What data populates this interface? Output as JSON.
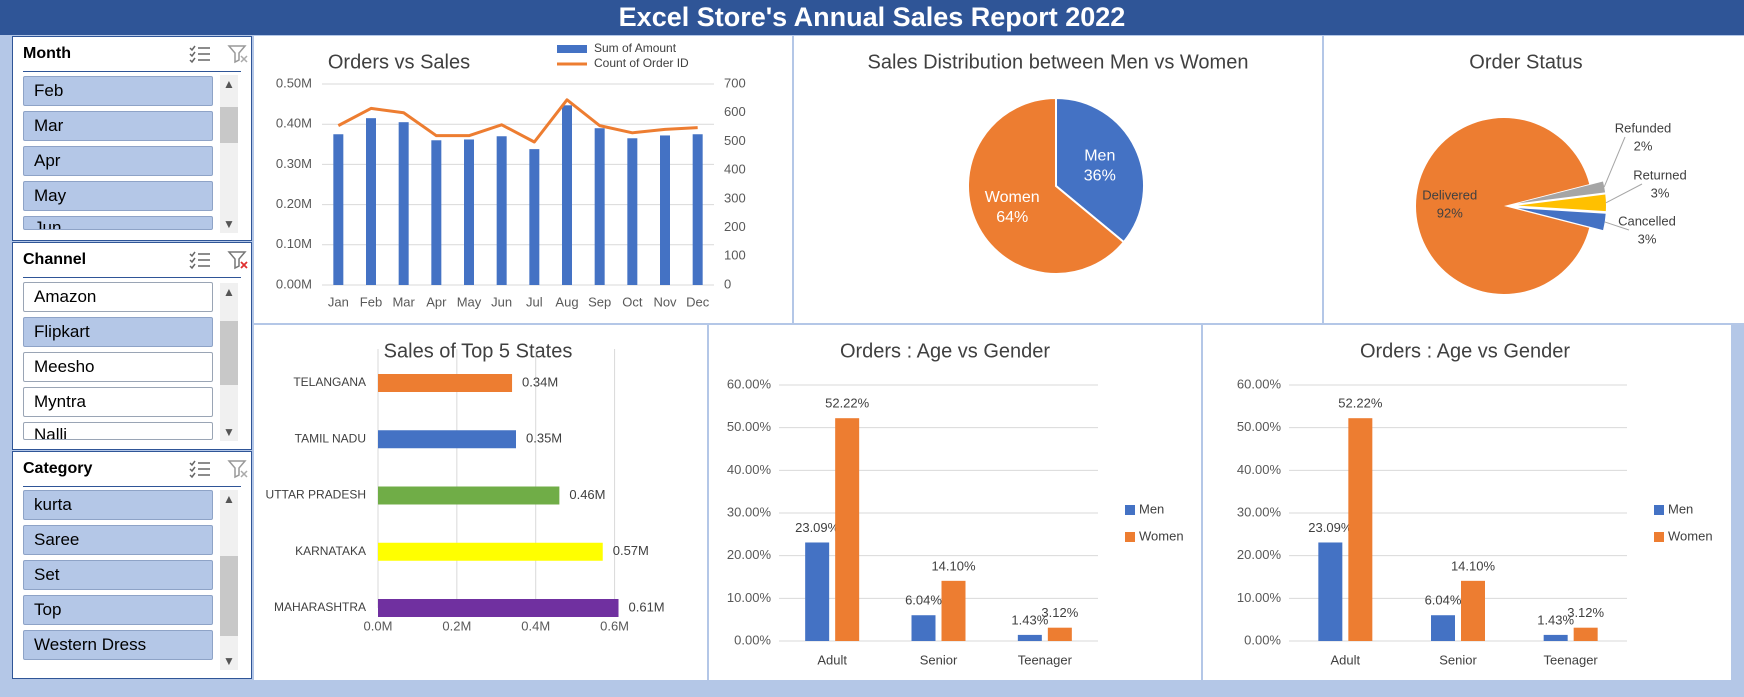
{
  "title": "Excel Store's Annual Sales Report 2022",
  "colors": {
    "banner": "#2f5597",
    "blue": "#4472c4",
    "orange": "#ed7d31",
    "gray": "#a5a5a5",
    "yellow": "#ffc000",
    "green": "#70ad47",
    "bright_yellow": "#ffff00",
    "purple": "#7030a0"
  },
  "slicers": [
    {
      "title": "Month",
      "items": [
        {
          "label": "Feb",
          "selected": true
        },
        {
          "label": "Mar",
          "selected": true
        },
        {
          "label": "Apr",
          "selected": true
        },
        {
          "label": "May",
          "selected": true
        },
        {
          "label": "Jun",
          "selected": true
        }
      ]
    },
    {
      "title": "Channel",
      "items": [
        {
          "label": "Amazon",
          "selected": false
        },
        {
          "label": "Flipkart",
          "selected": true
        },
        {
          "label": "Meesho",
          "selected": false
        },
        {
          "label": "Myntra",
          "selected": false
        },
        {
          "label": "Nalli",
          "selected": false
        }
      ]
    },
    {
      "title": "Category",
      "items": [
        {
          "label": "kurta",
          "selected": true
        },
        {
          "label": "Saree",
          "selected": true
        },
        {
          "label": "Set",
          "selected": true
        },
        {
          "label": "Top",
          "selected": true
        },
        {
          "label": "Western Dress",
          "selected": true
        }
      ]
    }
  ],
  "chart_data": [
    {
      "id": "orders_vs_sales",
      "type": "bar",
      "title": "Orders vs Sales",
      "categories": [
        "Jan",
        "Feb",
        "Mar",
        "Apr",
        "May",
        "Jun",
        "Jul",
        "Aug",
        "Sep",
        "Oct",
        "Nov",
        "Dec"
      ],
      "series": [
        {
          "name": "Sum of Amount",
          "type": "bar",
          "axis": "primary",
          "values": [
            0.375,
            0.415,
            0.405,
            0.36,
            0.362,
            0.37,
            0.338,
            0.447,
            0.39,
            0.365,
            0.372,
            0.375
          ]
        },
        {
          "name": "Count of Order ID",
          "type": "line",
          "axis": "secondary",
          "values": [
            555,
            615,
            600,
            520,
            520,
            558,
            498,
            645,
            555,
            530,
            542,
            548
          ]
        }
      ],
      "ylim": [
        0,
        0.5
      ],
      "y_ticks": [
        "0.00M",
        "0.10M",
        "0.20M",
        "0.30M",
        "0.40M",
        "0.50M"
      ],
      "y2lim": [
        0,
        700
      ],
      "y2_ticks": [
        "0",
        "100",
        "200",
        "300",
        "400",
        "500",
        "600",
        "700"
      ],
      "legend": "top-right"
    },
    {
      "id": "sales_men_women",
      "type": "pie",
      "title": "Sales Distribution between Men vs Women",
      "slices": [
        {
          "label": "Men",
          "value": 36,
          "text": "36%"
        },
        {
          "label": "Women",
          "value": 64,
          "text": "64%"
        }
      ]
    },
    {
      "id": "order_status",
      "type": "pie",
      "title": "Order Status",
      "slices": [
        {
          "label": "Delivered",
          "value": 92,
          "text": "92%"
        },
        {
          "label": "Refunded",
          "value": 2,
          "text": "2%"
        },
        {
          "label": "Returned",
          "value": 3,
          "text": "3%"
        },
        {
          "label": "Cancelled",
          "value": 3,
          "text": "3%"
        }
      ]
    },
    {
      "id": "top5_states",
      "type": "bar",
      "orientation": "horizontal",
      "title": "Sales of Top 5 States",
      "categories": [
        "TELANGANA",
        "TAMIL NADU",
        "UTTAR PRADESH",
        "KARNATAKA",
        "MAHARASHTRA"
      ],
      "values": [
        0.34,
        0.35,
        0.46,
        0.57,
        0.61
      ],
      "labels": [
        "0.34M",
        "0.35M",
        "0.46M",
        "0.57M",
        "0.61M"
      ],
      "xlim": [
        0,
        0.7
      ],
      "x_ticks": [
        "0.0M",
        "0.2M",
        "0.4M",
        "0.6M"
      ]
    },
    {
      "id": "age_gender_1",
      "type": "bar",
      "title": "Orders : Age vs Gender",
      "categories": [
        "Adult",
        "Senior",
        "Teenager"
      ],
      "series": [
        {
          "name": "Men",
          "values": [
            23.09,
            6.04,
            1.43
          ],
          "labels": [
            "23.09%",
            "6.04%",
            "1.43%"
          ]
        },
        {
          "name": "Women",
          "values": [
            52.22,
            14.1,
            3.12
          ],
          "labels": [
            "52.22%",
            "14.10%",
            "3.12%"
          ]
        }
      ],
      "ylim": [
        0,
        60
      ],
      "y_ticks": [
        "0.00%",
        "10.00%",
        "20.00%",
        "30.00%",
        "40.00%",
        "50.00%",
        "60.00%"
      ],
      "legend": "right"
    },
    {
      "id": "age_gender_2",
      "type": "bar",
      "title": "Orders : Age vs Gender",
      "categories": [
        "Adult",
        "Senior",
        "Teenager"
      ],
      "series": [
        {
          "name": "Men",
          "values": [
            23.09,
            6.04,
            1.43
          ],
          "labels": [
            "23.09%",
            "6.04%",
            "1.43%"
          ]
        },
        {
          "name": "Women",
          "values": [
            52.22,
            14.1,
            3.12
          ],
          "labels": [
            "52.22%",
            "14.10%",
            "3.12%"
          ]
        }
      ],
      "ylim": [
        0,
        60
      ],
      "y_ticks": [
        "0.00%",
        "10.00%",
        "20.00%",
        "30.00%",
        "40.00%",
        "50.00%",
        "60.00%"
      ],
      "legend": "right"
    }
  ]
}
